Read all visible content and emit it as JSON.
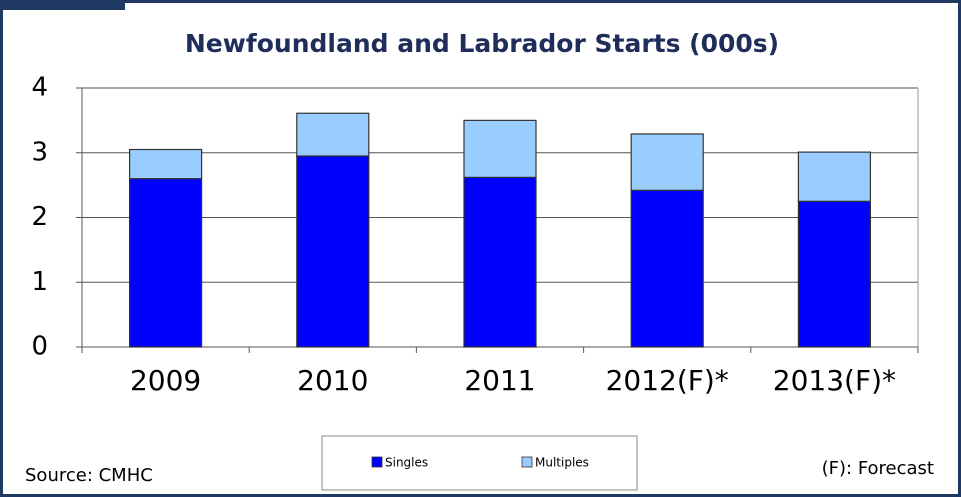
{
  "chart_data": {
    "type": "bar",
    "stacked": true,
    "title": "Newfoundland and Labrador Starts (000s)",
    "categories": [
      "2009",
      "2010",
      "2011",
      "2012(F)*",
      "2013(F)*"
    ],
    "series": [
      {
        "name": "Singles",
        "color": "#0000ff",
        "values": [
          2.6,
          2.95,
          2.62,
          2.42,
          2.25
        ]
      },
      {
        "name": "Multiples",
        "color": "#99ccff",
        "values": [
          0.45,
          0.66,
          0.88,
          0.87,
          0.76
        ]
      }
    ],
    "ylim": [
      0,
      4
    ],
    "yticks": [
      0,
      1,
      2,
      3,
      4
    ],
    "grid": true,
    "source": "Source: CMHC",
    "note": "(F): Forecast"
  }
}
